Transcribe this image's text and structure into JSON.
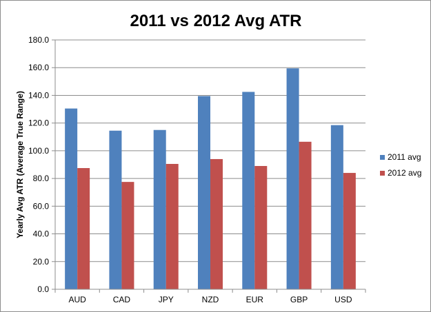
{
  "chart_data": {
    "type": "bar",
    "title": "2011 vs 2012 Avg ATR",
    "xlabel": "",
    "ylabel": "Yearly Avg ATR (Average True Range)",
    "categories": [
      "AUD",
      "CAD",
      "JPY",
      "NZD",
      "EUR",
      "GBP",
      "USD"
    ],
    "series": [
      {
        "name": "2011 avg",
        "color": "#4f81bd",
        "values": [
          130.5,
          114.5,
          115.0,
          139.5,
          142.5,
          159.5,
          118.5
        ]
      },
      {
        "name": "2012 avg",
        "color": "#c0504d",
        "values": [
          87.5,
          77.5,
          90.5,
          94.0,
          89.0,
          106.5,
          84.0
        ]
      }
    ],
    "ylim": [
      0,
      180
    ],
    "ytick_step": 20,
    "ytick_labels": [
      "0.0",
      "20.0",
      "40.0",
      "60.0",
      "80.0",
      "100.0",
      "120.0",
      "140.0",
      "160.0",
      "180.0"
    ],
    "grid": true,
    "legend_position": "right"
  }
}
